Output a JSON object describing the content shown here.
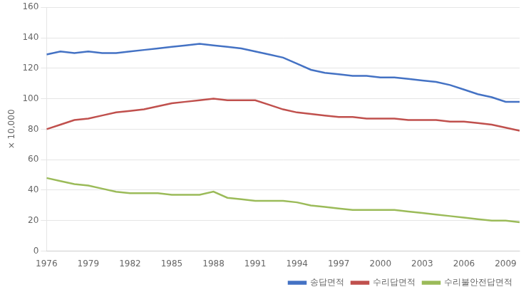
{
  "chart_data": {
    "type": "line",
    "x": [
      1976,
      1977,
      1978,
      1979,
      1980,
      1981,
      1982,
      1983,
      1984,
      1985,
      1986,
      1987,
      1988,
      1989,
      1990,
      1991,
      1992,
      1993,
      1994,
      1995,
      1996,
      1997,
      1998,
      1999,
      2000,
      2001,
      2002,
      2003,
      2004,
      2005,
      2006,
      2007,
      2008,
      2009,
      2010
    ],
    "series": [
      {
        "name": "송답면적",
        "color": "#4472C4",
        "values": [
          129,
          131,
          130,
          131,
          130,
          130,
          131,
          132,
          133,
          134,
          135,
          136,
          135,
          134,
          133,
          131,
          129,
          127,
          123,
          119,
          117,
          116,
          115,
          115,
          114,
          114,
          113,
          112,
          111,
          109,
          106,
          103,
          101,
          98,
          98
        ]
      },
      {
        "name": "수리답면적",
        "color": "#C0504D",
        "values": [
          80,
          83,
          86,
          87,
          89,
          91,
          92,
          93,
          95,
          97,
          98,
          99,
          100,
          99,
          99,
          99,
          96,
          93,
          91,
          90,
          89,
          88,
          88,
          87,
          87,
          87,
          86,
          86,
          86,
          85,
          85,
          84,
          83,
          81,
          79
        ]
      },
      {
        "name": "수리불안전답면적",
        "color": "#9BBB59",
        "values": [
          48,
          46,
          44,
          43,
          41,
          39,
          38,
          38,
          38,
          37,
          37,
          37,
          39,
          35,
          34,
          33,
          33,
          33,
          32,
          30,
          29,
          28,
          27,
          27,
          27,
          27,
          26,
          25,
          24,
          23,
          22,
          21,
          20,
          20,
          19
        ]
      }
    ],
    "ylabel": "× 10,000",
    "xlim": [
      1976,
      2010
    ],
    "xticks": [
      1976,
      1979,
      1982,
      1985,
      1988,
      1991,
      1994,
      1997,
      2000,
      2003,
      2006,
      2009
    ],
    "ylim": [
      0,
      160
    ],
    "yticks": [
      0,
      20,
      40,
      60,
      80,
      100,
      120,
      140,
      160
    ],
    "grid": "y",
    "legend": "lower right"
  }
}
